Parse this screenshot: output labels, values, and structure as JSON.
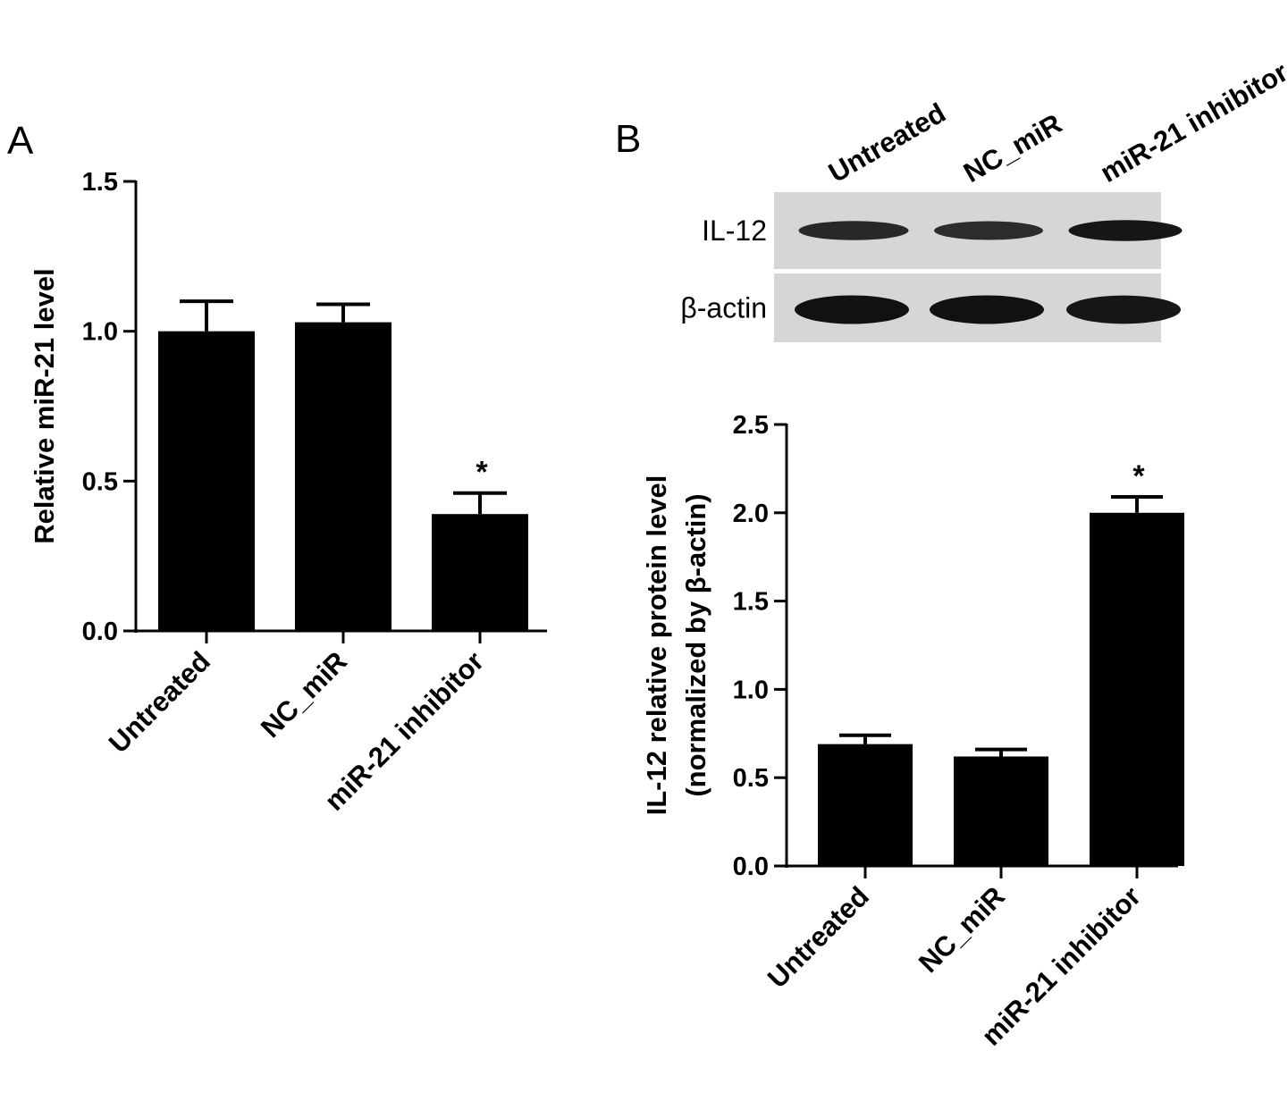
{
  "figure": {
    "panel_labels": [
      "A",
      "B"
    ]
  },
  "blot": {
    "lanes": [
      "Untreated",
      "NC_miR",
      "miR-21 inhibitor"
    ],
    "rows": [
      {
        "label": "IL-12",
        "intensity": [
          0.75,
          0.7,
          0.95
        ]
      },
      {
        "label": "β-actin",
        "intensity": [
          1.0,
          1.0,
          0.95
        ]
      }
    ],
    "colors": {
      "background": "#d6d6d6",
      "band": "#111111"
    }
  },
  "chart_data": [
    {
      "type": "bar",
      "panel": "A",
      "categories": [
        "Untreated",
        "NC_miR",
        "miR-21 inhibitor"
      ],
      "values": [
        1.0,
        1.03,
        0.39
      ],
      "errors": [
        0.1,
        0.06,
        0.07
      ],
      "significance": [
        "",
        "",
        "*"
      ],
      "ylabel": "Relative miR-21 level",
      "xlabel": "",
      "ylim": [
        0,
        1.5
      ],
      "yticks": [
        "0.0",
        "0.5",
        "1.0",
        "1.5"
      ],
      "bar_color": "#000000"
    },
    {
      "type": "bar",
      "panel": "B",
      "categories": [
        "Untreated",
        "NC_miR",
        "miR-21 inhibitor"
      ],
      "values": [
        0.69,
        0.62,
        2.0
      ],
      "errors": [
        0.05,
        0.04,
        0.09
      ],
      "significance": [
        "",
        "",
        "*"
      ],
      "ylabel": [
        "IL-12 relative protein level",
        "(normalized by β-actin)"
      ],
      "xlabel": "",
      "ylim": [
        0,
        2.5
      ],
      "yticks": [
        "0.0",
        "0.5",
        "1.0",
        "1.5",
        "2.0",
        "2.5"
      ],
      "bar_color": "#000000"
    }
  ]
}
